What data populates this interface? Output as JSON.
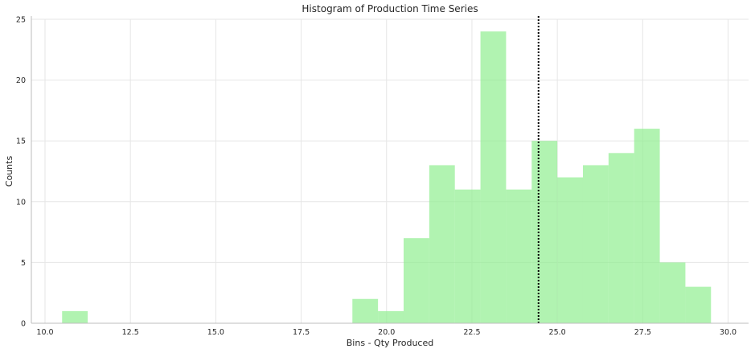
{
  "chart_data": {
    "type": "bar",
    "title": "Histogram of Production Time Series",
    "xlabel": "Bins - Qty Produced",
    "ylabel": "Counts",
    "xlim": [
      9.6,
      30.6
    ],
    "ylim": [
      0,
      25
    ],
    "xticks": [
      10.0,
      12.5,
      15.0,
      17.5,
      20.0,
      22.5,
      25.0,
      27.5,
      30.0
    ],
    "xtick_labels": [
      "10.0",
      "12.5",
      "15.0",
      "17.5",
      "20.0",
      "22.5",
      "25.0",
      "27.5",
      "30.0"
    ],
    "yticks": [
      0,
      5,
      10,
      15,
      20,
      25
    ],
    "ytick_labels": [
      "0",
      "5",
      "10",
      "15",
      "20",
      "25"
    ],
    "grid": true,
    "bar_color": "#90ee90",
    "reference_line": {
      "x": 24.45,
      "style": "dotted",
      "color": "#000000"
    },
    "bins": [
      {
        "x0": 10.5,
        "x1": 11.25,
        "count": 1
      },
      {
        "x0": 19.0,
        "x1": 19.75,
        "count": 2
      },
      {
        "x0": 19.75,
        "x1": 20.5,
        "count": 1
      },
      {
        "x0": 20.5,
        "x1": 21.25,
        "count": 7
      },
      {
        "x0": 21.25,
        "x1": 22.0,
        "count": 13
      },
      {
        "x0": 22.0,
        "x1": 22.75,
        "count": 11
      },
      {
        "x0": 22.75,
        "x1": 23.5,
        "count": 24
      },
      {
        "x0": 23.5,
        "x1": 24.25,
        "count": 11
      },
      {
        "x0": 24.25,
        "x1": 25.0,
        "count": 15
      },
      {
        "x0": 25.0,
        "x1": 25.75,
        "count": 12
      },
      {
        "x0": 25.75,
        "x1": 26.5,
        "count": 13
      },
      {
        "x0": 26.5,
        "x1": 27.25,
        "count": 14
      },
      {
        "x0": 27.25,
        "x1": 28.0,
        "count": 16
      },
      {
        "x0": 28.0,
        "x1": 28.75,
        "count": 5
      },
      {
        "x0": 28.75,
        "x1": 29.5,
        "count": 3
      }
    ]
  }
}
